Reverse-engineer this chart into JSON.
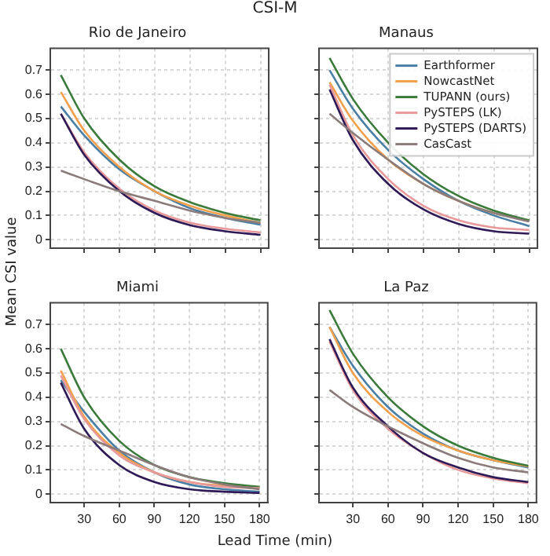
{
  "chart_data": [
    {
      "type": "line",
      "title": "Rio de Janeiro",
      "annotations": [
        "CSI-M"
      ],
      "ylabel": "Mean CSI value",
      "x": [
        10,
        30,
        60,
        90,
        120,
        150,
        180
      ],
      "xlim": [
        1,
        187
      ],
      "xticks": [
        30,
        60,
        90,
        120,
        150,
        180
      ],
      "ylim": [
        -0.035,
        0.79
      ],
      "yticks": [
        0,
        0.1,
        0.2,
        0.3,
        0.4,
        0.5,
        0.6,
        0.7
      ],
      "grid": true,
      "tick_labels": "y",
      "line_style": "solid",
      "marker": "none",
      "series": [
        {
          "color": "#4a7fa5",
          "values": [
            0.55,
            0.43,
            0.29,
            0.2,
            0.13,
            0.09,
            0.062
          ]
        },
        {
          "color": "#f4a04a",
          "values": [
            0.61,
            0.45,
            0.3,
            0.2,
            0.14,
            0.1,
            0.07
          ]
        },
        {
          "color": "#3a7a3a",
          "values": [
            0.68,
            0.5,
            0.33,
            0.22,
            0.155,
            0.11,
            0.08
          ]
        },
        {
          "color": "#e89a9a",
          "values": [
            0.52,
            0.36,
            0.21,
            0.12,
            0.07,
            0.045,
            0.03
          ]
        },
        {
          "color": "#2e1a57",
          "values": [
            0.52,
            0.35,
            0.2,
            0.11,
            0.06,
            0.035,
            0.02
          ]
        },
        {
          "color": "#8c7b7b",
          "values": [
            0.285,
            0.25,
            0.2,
            0.16,
            0.12,
            0.09,
            0.07
          ]
        }
      ]
    },
    {
      "type": "line",
      "title": "Manaus",
      "x": [
        10,
        30,
        60,
        90,
        120,
        150,
        180
      ],
      "xlim": [
        1,
        187
      ],
      "xticks": [
        30,
        60,
        90,
        120,
        150,
        180
      ],
      "ylim": [
        -0.035,
        0.79
      ],
      "yticks": [
        0,
        0.1,
        0.2,
        0.3,
        0.4,
        0.5,
        0.6,
        0.7
      ],
      "grid": true,
      "tick_labels": false,
      "legend": "top right",
      "line_style": "solid",
      "marker": "none",
      "series": [
        {
          "name": "Earthformer",
          "color": "#4a7fa5",
          "values": [
            0.7,
            0.54,
            0.37,
            0.25,
            0.16,
            0.1,
            0.056
          ]
        },
        {
          "name": "NowcastNet",
          "color": "#f4a04a",
          "values": [
            0.65,
            0.49,
            0.33,
            0.23,
            0.16,
            0.11,
            0.08
          ]
        },
        {
          "name": "TUPANN (ours)",
          "color": "#3a7a3a",
          "values": [
            0.75,
            0.58,
            0.4,
            0.27,
            0.18,
            0.12,
            0.08
          ]
        },
        {
          "name": "PySTEPS (LK)",
          "color": "#e89a9a",
          "values": [
            0.64,
            0.43,
            0.25,
            0.14,
            0.08,
            0.05,
            0.04
          ]
        },
        {
          "name": "PySTEPS (DARTS)",
          "color": "#2e1a57",
          "values": [
            0.62,
            0.41,
            0.23,
            0.125,
            0.065,
            0.035,
            0.025
          ]
        },
        {
          "name": "CasCast",
          "color": "#8c7b7b",
          "values": [
            0.52,
            0.44,
            0.33,
            0.23,
            0.16,
            0.11,
            0.075
          ]
        }
      ]
    },
    {
      "type": "line",
      "title": "Miami",
      "xlabel": "Lead Time (min)",
      "x": [
        10,
        30,
        60,
        90,
        120,
        150,
        180
      ],
      "xlim": [
        1,
        187
      ],
      "xticks": [
        30,
        60,
        90,
        120,
        150,
        180
      ],
      "ylim": [
        -0.035,
        0.79
      ],
      "yticks": [
        0,
        0.1,
        0.2,
        0.3,
        0.4,
        0.5,
        0.6,
        0.7
      ],
      "grid": true,
      "line_style": "solid",
      "marker": "none",
      "series": [
        {
          "color": "#4a7fa5",
          "values": [
            0.47,
            0.34,
            0.18,
            0.09,
            0.04,
            0.02,
            0.01
          ]
        },
        {
          "color": "#f4a04a",
          "values": [
            0.51,
            0.32,
            0.17,
            0.09,
            0.05,
            0.035,
            0.03
          ]
        },
        {
          "color": "#3a7a3a",
          "values": [
            0.6,
            0.4,
            0.22,
            0.12,
            0.07,
            0.045,
            0.03
          ]
        },
        {
          "color": "#e89a9a",
          "values": [
            0.49,
            0.31,
            0.16,
            0.09,
            0.05,
            0.03,
            0.025
          ]
        },
        {
          "color": "#2e1a57",
          "values": [
            0.46,
            0.27,
            0.12,
            0.05,
            0.02,
            0.01,
            0.005
          ]
        },
        {
          "color": "#8c7b7b",
          "values": [
            0.29,
            0.24,
            0.18,
            0.12,
            0.07,
            0.04,
            0.02
          ]
        }
      ]
    },
    {
      "type": "line",
      "title": "La Paz",
      "x": [
        10,
        30,
        60,
        90,
        120,
        150,
        180
      ],
      "xlim": [
        1,
        187
      ],
      "xticks": [
        30,
        60,
        90,
        120,
        150,
        180
      ],
      "ylim": [
        -0.035,
        0.79
      ],
      "yticks": [
        0,
        0.1,
        0.2,
        0.3,
        0.4,
        0.5,
        0.6,
        0.7
      ],
      "grid": true,
      "tick_labels": "x",
      "line_style": "solid",
      "marker": "none",
      "series": [
        {
          "color": "#4a7fa5",
          "values": [
            0.69,
            0.53,
            0.36,
            0.25,
            0.18,
            0.14,
            0.11
          ]
        },
        {
          "color": "#f4a04a",
          "values": [
            0.69,
            0.5,
            0.34,
            0.24,
            0.18,
            0.14,
            0.115
          ]
        },
        {
          "color": "#3a7a3a",
          "values": [
            0.76,
            0.58,
            0.4,
            0.28,
            0.2,
            0.15,
            0.117
          ]
        },
        {
          "color": "#e89a9a",
          "values": [
            0.63,
            0.43,
            0.27,
            0.17,
            0.1,
            0.065,
            0.045
          ]
        },
        {
          "color": "#2e1a57",
          "values": [
            0.64,
            0.44,
            0.28,
            0.17,
            0.11,
            0.07,
            0.05
          ]
        },
        {
          "color": "#8c7b7b",
          "values": [
            0.43,
            0.36,
            0.28,
            0.21,
            0.15,
            0.11,
            0.09
          ]
        }
      ]
    }
  ]
}
